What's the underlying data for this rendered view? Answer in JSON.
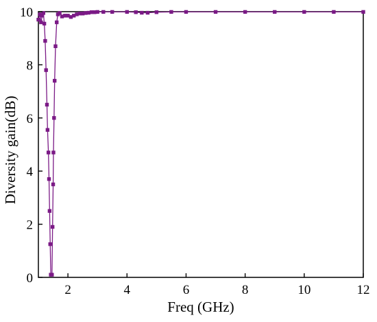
{
  "chart_data": {
    "type": "line",
    "title": "",
    "xlabel": "Freq (GHz)",
    "ylabel": "Diversity gain(dB)",
    "xlim": [
      1,
      12
    ],
    "ylim": [
      0,
      10
    ],
    "xticks": [
      2,
      4,
      6,
      8,
      10,
      12
    ],
    "yticks": [
      0,
      2,
      4,
      6,
      8,
      10
    ],
    "grid": false,
    "legend": "none",
    "series": [
      {
        "color": "#7b1a86",
        "marker": "square",
        "points": [
          [
            1.0,
            9.7
          ],
          [
            1.05,
            9.9
          ],
          [
            1.09,
            9.6
          ],
          [
            1.13,
            9.85
          ],
          [
            1.17,
            9.95
          ],
          [
            1.2,
            9.55
          ],
          [
            1.23,
            8.9
          ],
          [
            1.26,
            7.8
          ],
          [
            1.29,
            6.5
          ],
          [
            1.31,
            5.55
          ],
          [
            1.34,
            4.7
          ],
          [
            1.36,
            3.7
          ],
          [
            1.38,
            2.5
          ],
          [
            1.4,
            1.25
          ],
          [
            1.42,
            0.1
          ],
          [
            1.46,
            0.1
          ],
          [
            1.48,
            1.9
          ],
          [
            1.5,
            3.5
          ],
          [
            1.51,
            4.7
          ],
          [
            1.53,
            6.0
          ],
          [
            1.55,
            7.4
          ],
          [
            1.58,
            8.7
          ],
          [
            1.62,
            9.6
          ],
          [
            1.66,
            9.9
          ],
          [
            1.72,
            9.95
          ],
          [
            1.8,
            9.82
          ],
          [
            1.9,
            9.85
          ],
          [
            2.0,
            9.85
          ],
          [
            2.1,
            9.8
          ],
          [
            2.2,
            9.85
          ],
          [
            2.3,
            9.9
          ],
          [
            2.4,
            9.93
          ],
          [
            2.5,
            9.93
          ],
          [
            2.6,
            9.95
          ],
          [
            2.7,
            9.96
          ],
          [
            2.8,
            9.98
          ],
          [
            2.9,
            9.98
          ],
          [
            3.0,
            9.99
          ],
          [
            3.2,
            9.99
          ],
          [
            3.5,
            9.99
          ],
          [
            4.0,
            9.99
          ],
          [
            4.3,
            9.98
          ],
          [
            4.5,
            9.96
          ],
          [
            4.7,
            9.96
          ],
          [
            5.0,
            9.98
          ],
          [
            5.5,
            9.99
          ],
          [
            6.0,
            9.99
          ],
          [
            7.0,
            9.99
          ],
          [
            8.0,
            9.99
          ],
          [
            9.0,
            9.99
          ],
          [
            10.0,
            9.99
          ],
          [
            11.0,
            9.99
          ],
          [
            12.0,
            9.99
          ]
        ]
      }
    ]
  }
}
